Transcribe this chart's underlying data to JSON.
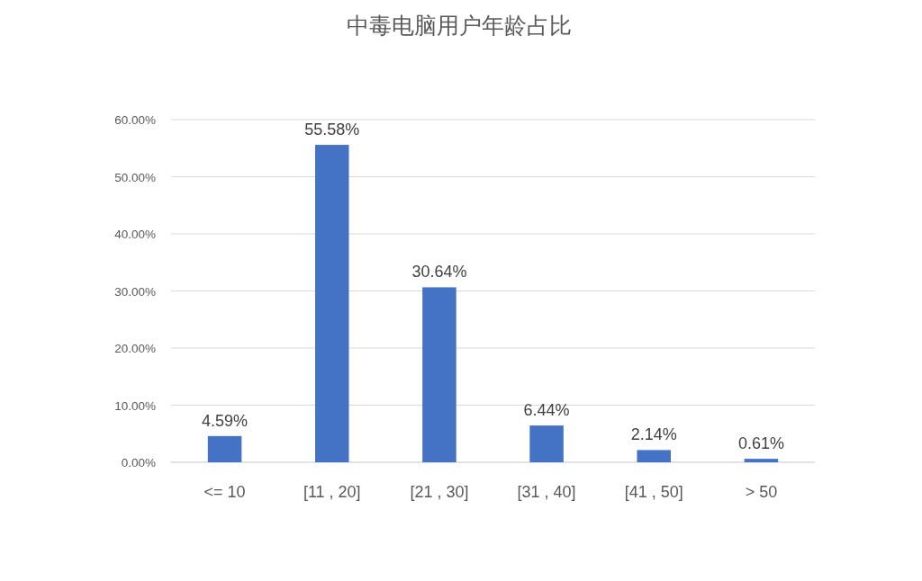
{
  "chart_data": {
    "type": "bar",
    "title": "中毒电脑用户年龄占比",
    "categories": [
      "<= 10",
      "[11 , 20]",
      "[21 , 30]",
      "[31 , 40]",
      "[41 , 50]",
      "> 50"
    ],
    "values": [
      4.59,
      55.58,
      30.64,
      6.44,
      2.14,
      0.61
    ],
    "value_labels": [
      "4.59%",
      "55.58%",
      "30.64%",
      "6.44%",
      "2.14%",
      "0.61%"
    ],
    "color": "#4472c4",
    "ylim": [
      0,
      60
    ],
    "yticks": [
      {
        "value": 0,
        "label": "0.00%"
      },
      {
        "value": 10,
        "label": "10.00%"
      },
      {
        "value": 20,
        "label": "20.00%"
      },
      {
        "value": 30,
        "label": "30.00%"
      },
      {
        "value": 40,
        "label": "40.00%"
      },
      {
        "value": 50,
        "label": "50.00%"
      },
      {
        "value": 60,
        "label": "60.00%"
      }
    ],
    "grid": "y"
  }
}
